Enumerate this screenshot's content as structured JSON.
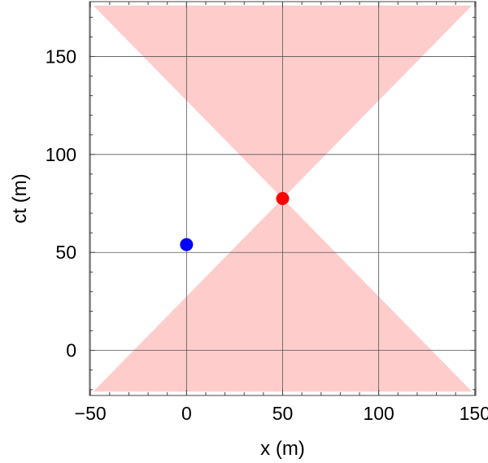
{
  "chart_data": {
    "type": "scatter",
    "title": "",
    "xlabel": "x (m)",
    "ylabel": "ct (m)",
    "xlim": [
      -50.5,
      150.5
    ],
    "ylim": [
      -23,
      178
    ],
    "grid": true,
    "x_ticks": [
      -50,
      0,
      50,
      100,
      150
    ],
    "x_tick_labels": [
      "−50",
      "0",
      "50",
      "100",
      "150"
    ],
    "y_ticks": [
      0,
      50,
      100,
      150
    ],
    "y_tick_labels": [
      "0",
      "50",
      "100",
      "150"
    ],
    "light_cone": {
      "apex": [
        50,
        77.5
      ],
      "slope": 1,
      "color": "#ffcccc"
    },
    "points": [
      {
        "x": 50,
        "y": 77.5,
        "color": "#ff0000"
      },
      {
        "x": 0,
        "y": 54,
        "color": "#0000ff"
      }
    ]
  }
}
